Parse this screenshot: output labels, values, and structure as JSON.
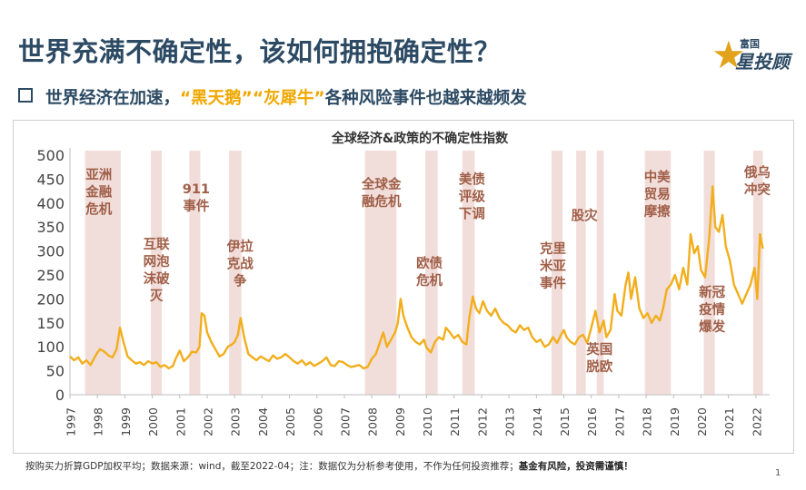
{
  "header": {
    "title": "世界充满不确定性，该如何拥抱确定性？",
    "logo_small": "富国",
    "logo_big": "星投顾"
  },
  "subtitle": {
    "part1": "世界经济在加速，",
    "hl1": "“黑天鹅”",
    "hl2": "“灰犀牛”",
    "part2": "各种风险事件也越来越频发"
  },
  "footer": {
    "note": "按购买力折算GDP加权平均；数据来源：wind，截至2022-04；注：数据仅为分析参考使用，不作为任何投资推荐；",
    "bold": "基金有风险，投资需谨慎！",
    "page": "1"
  },
  "chart_data": {
    "type": "line",
    "title": "全球经济&政策的不确定性指数",
    "ylim": [
      0,
      500
    ],
    "yticks": [
      0,
      50,
      100,
      150,
      200,
      250,
      300,
      350,
      400,
      450,
      500
    ],
    "xlim": [
      1997,
      2022.5
    ],
    "xticks": [
      "1997",
      "1998",
      "1999",
      "2000",
      "2001",
      "2002",
      "2003",
      "2004",
      "2005",
      "2006",
      "2007",
      "2008",
      "2009",
      "2010",
      "2011",
      "2012",
      "2013",
      "2014",
      "2015",
      "2016",
      "2017",
      "2018",
      "2019",
      "2020",
      "2021",
      "2022"
    ],
    "grid": false,
    "series_color": "#f2ae1c",
    "band_color": "#f1dedb",
    "label_color": "#a05f48",
    "series": [
      {
        "points": [
          [
            1997.0,
            80
          ],
          [
            1997.15,
            72
          ],
          [
            1997.3,
            78
          ],
          [
            1997.45,
            65
          ],
          [
            1997.6,
            72
          ],
          [
            1997.75,
            62
          ],
          [
            1997.9,
            78
          ],
          [
            1998.0,
            88
          ],
          [
            1998.1,
            95
          ],
          [
            1998.25,
            90
          ],
          [
            1998.4,
            82
          ],
          [
            1998.55,
            78
          ],
          [
            1998.7,
            95
          ],
          [
            1998.82,
            140
          ],
          [
            1998.95,
            110
          ],
          [
            1999.1,
            80
          ],
          [
            1999.25,
            72
          ],
          [
            1999.4,
            65
          ],
          [
            1999.55,
            68
          ],
          [
            1999.7,
            62
          ],
          [
            1999.85,
            70
          ],
          [
            2000.0,
            65
          ],
          [
            2000.15,
            68
          ],
          [
            2000.3,
            58
          ],
          [
            2000.45,
            62
          ],
          [
            2000.6,
            55
          ],
          [
            2000.75,
            60
          ],
          [
            2000.85,
            75
          ],
          [
            2001.0,
            92
          ],
          [
            2001.15,
            70
          ],
          [
            2001.3,
            78
          ],
          [
            2001.45,
            90
          ],
          [
            2001.6,
            88
          ],
          [
            2001.72,
            100
          ],
          [
            2001.8,
            170
          ],
          [
            2001.9,
            165
          ],
          [
            2002.0,
            130
          ],
          [
            2002.15,
            110
          ],
          [
            2002.3,
            95
          ],
          [
            2002.45,
            80
          ],
          [
            2002.6,
            85
          ],
          [
            2002.75,
            100
          ],
          [
            2002.9,
            105
          ],
          [
            2003.0,
            110
          ],
          [
            2003.12,
            125
          ],
          [
            2003.22,
            160
          ],
          [
            2003.35,
            120
          ],
          [
            2003.5,
            85
          ],
          [
            2003.65,
            78
          ],
          [
            2003.8,
            72
          ],
          [
            2003.95,
            80
          ],
          [
            2004.1,
            75
          ],
          [
            2004.25,
            70
          ],
          [
            2004.4,
            82
          ],
          [
            2004.55,
            75
          ],
          [
            2004.7,
            78
          ],
          [
            2004.85,
            85
          ],
          [
            2005.0,
            78
          ],
          [
            2005.15,
            70
          ],
          [
            2005.3,
            65
          ],
          [
            2005.45,
            72
          ],
          [
            2005.6,
            62
          ],
          [
            2005.75,
            68
          ],
          [
            2005.9,
            60
          ],
          [
            2006.05,
            65
          ],
          [
            2006.2,
            70
          ],
          [
            2006.35,
            78
          ],
          [
            2006.5,
            62
          ],
          [
            2006.65,
            60
          ],
          [
            2006.8,
            70
          ],
          [
            2006.95,
            68
          ],
          [
            2007.1,
            62
          ],
          [
            2007.25,
            58
          ],
          [
            2007.4,
            60
          ],
          [
            2007.55,
            62
          ],
          [
            2007.7,
            55
          ],
          [
            2007.85,
            58
          ],
          [
            2008.0,
            75
          ],
          [
            2008.15,
            85
          ],
          [
            2008.3,
            110
          ],
          [
            2008.42,
            130
          ],
          [
            2008.55,
            100
          ],
          [
            2008.7,
            115
          ],
          [
            2008.85,
            130
          ],
          [
            2008.95,
            150
          ],
          [
            2009.05,
            200
          ],
          [
            2009.15,
            165
          ],
          [
            2009.3,
            140
          ],
          [
            2009.45,
            120
          ],
          [
            2009.6,
            110
          ],
          [
            2009.75,
            105
          ],
          [
            2009.9,
            115
          ],
          [
            2010.0,
            98
          ],
          [
            2010.15,
            88
          ],
          [
            2010.3,
            110
          ],
          [
            2010.45,
            120
          ],
          [
            2010.6,
            115
          ],
          [
            2010.7,
            140
          ],
          [
            2010.85,
            130
          ],
          [
            2011.0,
            118
          ],
          [
            2011.15,
            125
          ],
          [
            2011.3,
            110
          ],
          [
            2011.45,
            105
          ],
          [
            2011.55,
            160
          ],
          [
            2011.68,
            205
          ],
          [
            2011.8,
            180
          ],
          [
            2011.92,
            170
          ],
          [
            2012.05,
            195
          ],
          [
            2012.2,
            175
          ],
          [
            2012.35,
            165
          ],
          [
            2012.5,
            180
          ],
          [
            2012.65,
            160
          ],
          [
            2012.8,
            150
          ],
          [
            2012.95,
            145
          ],
          [
            2013.1,
            135
          ],
          [
            2013.25,
            130
          ],
          [
            2013.4,
            145
          ],
          [
            2013.55,
            135
          ],
          [
            2013.7,
            140
          ],
          [
            2013.85,
            120
          ],
          [
            2014.0,
            110
          ],
          [
            2014.15,
            115
          ],
          [
            2014.3,
            100
          ],
          [
            2014.45,
            105
          ],
          [
            2014.6,
            120
          ],
          [
            2014.75,
            108
          ],
          [
            2014.9,
            125
          ],
          [
            2015.0,
            135
          ],
          [
            2015.1,
            120
          ],
          [
            2015.25,
            110
          ],
          [
            2015.4,
            105
          ],
          [
            2015.55,
            120
          ],
          [
            2015.7,
            125
          ],
          [
            2015.85,
            108
          ],
          [
            2016.0,
            140
          ],
          [
            2016.15,
            175
          ],
          [
            2016.3,
            130
          ],
          [
            2016.45,
            155
          ],
          [
            2016.55,
            120
          ],
          [
            2016.7,
            135
          ],
          [
            2016.85,
            210
          ],
          [
            2016.95,
            175
          ],
          [
            2017.1,
            165
          ],
          [
            2017.25,
            230
          ],
          [
            2017.35,
            255
          ],
          [
            2017.45,
            200
          ],
          [
            2017.6,
            245
          ],
          [
            2017.75,
            180
          ],
          [
            2017.9,
            160
          ],
          [
            2018.05,
            170
          ],
          [
            2018.2,
            150
          ],
          [
            2018.35,
            165
          ],
          [
            2018.5,
            155
          ],
          [
            2018.62,
            180
          ],
          [
            2018.75,
            220
          ],
          [
            2018.9,
            230
          ],
          [
            2019.05,
            250
          ],
          [
            2019.2,
            220
          ],
          [
            2019.35,
            265
          ],
          [
            2019.5,
            230
          ],
          [
            2019.62,
            335
          ],
          [
            2019.75,
            295
          ],
          [
            2019.88,
            310
          ],
          [
            2020.0,
            260
          ],
          [
            2020.15,
            245
          ],
          [
            2020.3,
            330
          ],
          [
            2020.42,
            435
          ],
          [
            2020.52,
            350
          ],
          [
            2020.65,
            340
          ],
          [
            2020.78,
            375
          ],
          [
            2020.9,
            310
          ],
          [
            2021.05,
            280
          ],
          [
            2021.2,
            230
          ],
          [
            2021.35,
            210
          ],
          [
            2021.5,
            190
          ],
          [
            2021.65,
            210
          ],
          [
            2021.8,
            230
          ],
          [
            2021.95,
            265
          ],
          [
            2022.05,
            200
          ],
          [
            2022.15,
            335
          ],
          [
            2022.25,
            305
          ]
        ]
      }
    ],
    "bands": [
      {
        "start": 1997.55,
        "end": 1998.85,
        "label": [
          "亚洲",
          "金融",
          "危机"
        ],
        "label_x": 1998.05,
        "label_y": 450
      },
      {
        "start": 1999.95,
        "end": 2000.35,
        "label": [
          "互联",
          "网泡",
          "沫破",
          "灭"
        ],
        "label_x": 2000.15,
        "label_y": 305
      },
      {
        "start": 2001.35,
        "end": 2001.75,
        "label": [
          "911",
          "事件"
        ],
        "label_x": 2001.6,
        "label_y": 420
      },
      {
        "start": 2002.8,
        "end": 2003.25,
        "label": [
          "伊拉",
          "克战",
          "争"
        ],
        "label_x": 2003.2,
        "label_y": 300
      },
      {
        "start": 2007.75,
        "end": 2008.9,
        "label": [
          "全球金",
          "融危机"
        ],
        "label_x": 2008.35,
        "label_y": 430
      },
      {
        "start": 2009.95,
        "end": 2010.4,
        "label": [
          "欧债",
          "危机"
        ],
        "label_x": 2010.1,
        "label_y": 265
      },
      {
        "start": 2011.3,
        "end": 2011.75,
        "label": [
          "美债",
          "评级",
          "下调"
        ],
        "label_x": 2011.65,
        "label_y": 440
      },
      {
        "start": 2014.55,
        "end": 2014.95,
        "label": [
          "克里",
          "米亚",
          "事件"
        ],
        "label_x": 2014.6,
        "label_y": 295
      },
      {
        "start": 2015.45,
        "end": 2015.8,
        "label": [
          "股灾"
        ],
        "label_x": 2015.75,
        "label_y": 365
      },
      {
        "start": 2016.2,
        "end": 2016.45,
        "label": [
          "英国",
          "脱欧"
        ],
        "label_x": 2016.3,
        "label_y": 85
      },
      {
        "start": 2017.95,
        "end": 2018.9,
        "label": [
          "中美",
          "贸易",
          "摩擦"
        ],
        "label_x": 2018.4,
        "label_y": 445
      },
      {
        "start": 2020.1,
        "end": 2020.5,
        "label": [
          "新冠",
          "疫情",
          "爆发"
        ],
        "label_x": 2020.4,
        "label_y": 205
      },
      {
        "start": 2021.9,
        "end": 2022.25,
        "label": [
          "俄乌",
          "冲突"
        ],
        "label_x": 2022.05,
        "label_y": 455
      }
    ]
  }
}
